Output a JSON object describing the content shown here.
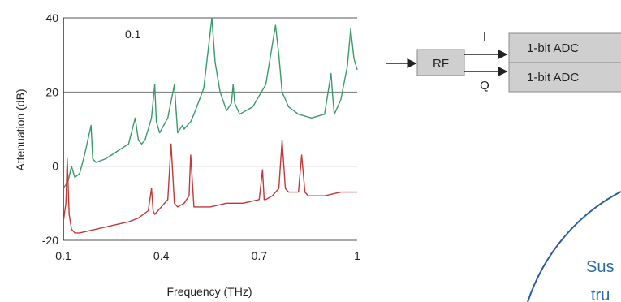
{
  "chart_data": {
    "type": "line",
    "xlabel": "Frequency (THz)",
    "ylabel": "Attenuation (dB)",
    "xlim": [
      0.1,
      1.0
    ],
    "ylim": [
      -20,
      40
    ],
    "xticks": [
      "0.1",
      "0.4",
      "0.7",
      "1"
    ],
    "yticks": [
      "40",
      "20",
      "0",
      "-20"
    ],
    "annotation": "0.1",
    "grid": "horizontal",
    "series": [
      {
        "color": "#3a9a6a",
        "x": [
          0.1,
          0.115,
          0.125,
          0.135,
          0.15,
          0.165,
          0.185,
          0.19,
          0.2,
          0.23,
          0.3,
          0.32,
          0.33,
          0.34,
          0.35,
          0.37,
          0.38,
          0.385,
          0.395,
          0.42,
          0.44,
          0.45,
          0.465,
          0.47,
          0.48,
          0.49,
          0.5,
          0.53,
          0.555,
          0.565,
          0.58,
          0.6,
          0.615,
          0.62,
          0.625,
          0.64,
          0.68,
          0.72,
          0.75,
          0.76,
          0.77,
          0.79,
          0.82,
          0.86,
          0.9,
          0.92,
          0.925,
          0.93,
          0.94,
          0.95,
          0.97,
          0.98,
          0.99,
          1.0
        ],
        "y": [
          -6,
          -4,
          0,
          -3,
          -2,
          3,
          11,
          2,
          1,
          2,
          6,
          13,
          7,
          6,
          7,
          13,
          22,
          12,
          9,
          13,
          22,
          9,
          11,
          10,
          11,
          12,
          14,
          21,
          40,
          28,
          20,
          15,
          17,
          22,
          17,
          14,
          16,
          22,
          38,
          30,
          20,
          16,
          14,
          13,
          14,
          25,
          19,
          14,
          16,
          18,
          27,
          37,
          29,
          26
        ]
      },
      {
        "color": "#c0393b",
        "x": [
          0.1,
          0.108,
          0.112,
          0.118,
          0.125,
          0.135,
          0.15,
          0.2,
          0.25,
          0.3,
          0.33,
          0.36,
          0.37,
          0.375,
          0.38,
          0.4,
          0.42,
          0.43,
          0.44,
          0.45,
          0.47,
          0.485,
          0.49,
          0.5,
          0.55,
          0.6,
          0.65,
          0.7,
          0.71,
          0.715,
          0.72,
          0.74,
          0.76,
          0.77,
          0.78,
          0.79,
          0.8,
          0.82,
          0.83,
          0.84,
          0.85,
          0.9,
          0.95,
          1.0
        ],
        "y": [
          -15,
          -10,
          2,
          -13,
          -17,
          -18,
          -18,
          -17,
          -16,
          -15,
          -14,
          -12,
          -6,
          -12,
          -13,
          -11,
          -9,
          6,
          -10,
          -11,
          -10,
          -8,
          3,
          -11,
          -11,
          -10,
          -10,
          -9,
          -1,
          -9,
          -9,
          -8,
          -6,
          7,
          -6,
          -7,
          -7,
          -7,
          3,
          -7,
          -8,
          -8,
          -7,
          -7
        ]
      }
    ]
  },
  "diagram": {
    "input_label": "RF",
    "i_label": "I",
    "q_label": "Q",
    "adc_top_label": "1-bit ADC",
    "adc_bottom_label": "1-bit ADC"
  },
  "overlay": {
    "text_line1": "Sus",
    "text_line2": "tru"
  }
}
